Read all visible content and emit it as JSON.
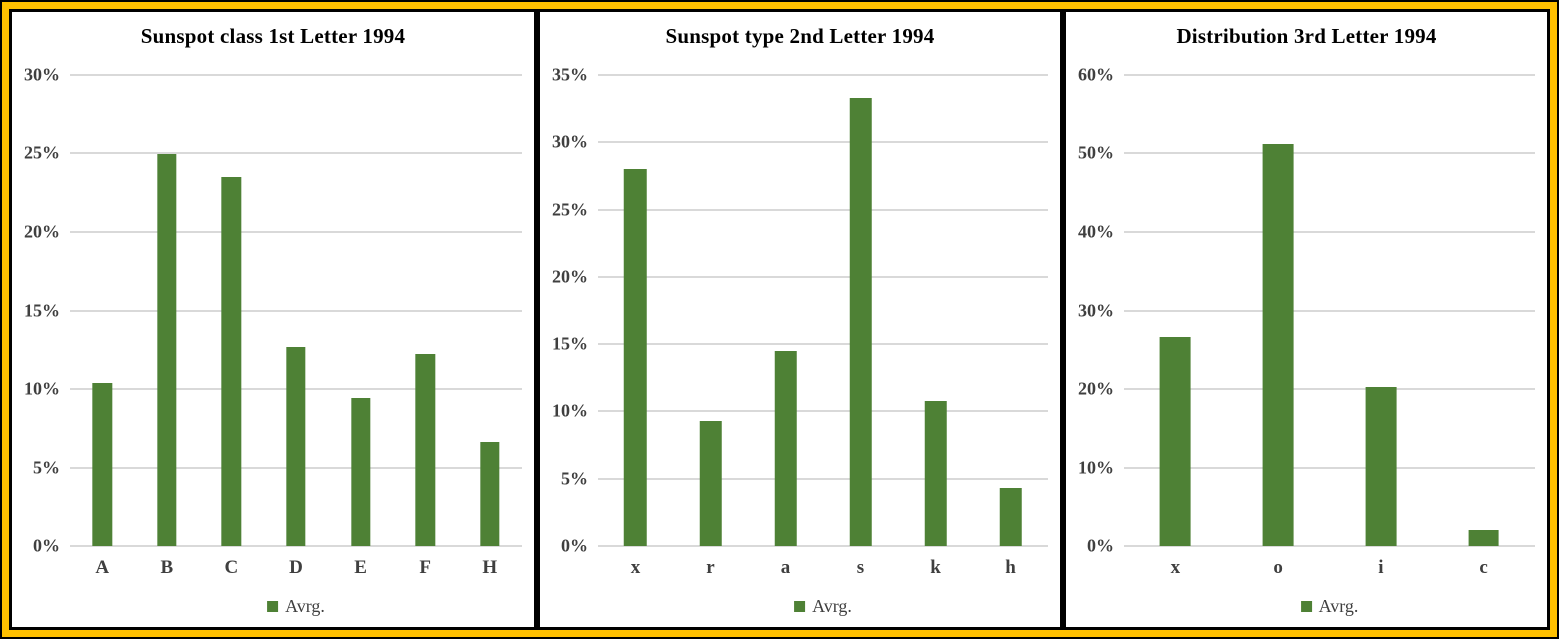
{
  "frame": {
    "outline_color": "#000000",
    "band_color": "#FFC000",
    "panel_border_color": "#000000",
    "panel_background": "#ffffff"
  },
  "colors": {
    "bar": "#4e8135",
    "gridline": "#d9d9d9",
    "axis_text": "#3f3f3f",
    "title_text": "#000000"
  },
  "chart_data": [
    {
      "type": "bar",
      "title": "Sunspot class 1st Letter 1994",
      "categories": [
        "A",
        "B",
        "C",
        "D",
        "E",
        "F",
        "H"
      ],
      "values": [
        10.4,
        25.0,
        23.5,
        12.7,
        9.4,
        12.2,
        6.6
      ],
      "value_unit": "%",
      "ylim": [
        0,
        30
      ],
      "ytick_step": 5,
      "grid": true,
      "legend": "Avrg.",
      "legend_position": "bottom"
    },
    {
      "type": "bar",
      "title": "Sunspot type 2nd Letter 1994",
      "categories": [
        "x",
        "r",
        "a",
        "s",
        "k",
        "h"
      ],
      "values": [
        28.0,
        9.3,
        14.5,
        33.3,
        10.8,
        4.3
      ],
      "value_unit": "%",
      "ylim": [
        0,
        35
      ],
      "ytick_step": 5,
      "grid": true,
      "legend": "Avrg.",
      "legend_position": "bottom"
    },
    {
      "type": "bar",
      "title": "Distribution 3rd Letter 1994",
      "categories": [
        "x",
        "o",
        "i",
        "c"
      ],
      "values": [
        26.6,
        51.2,
        20.3,
        2.1
      ],
      "value_unit": "%",
      "ylim": [
        0,
        60
      ],
      "ytick_step": 10,
      "grid": true,
      "legend": "Avrg.",
      "legend_position": "bottom"
    }
  ]
}
